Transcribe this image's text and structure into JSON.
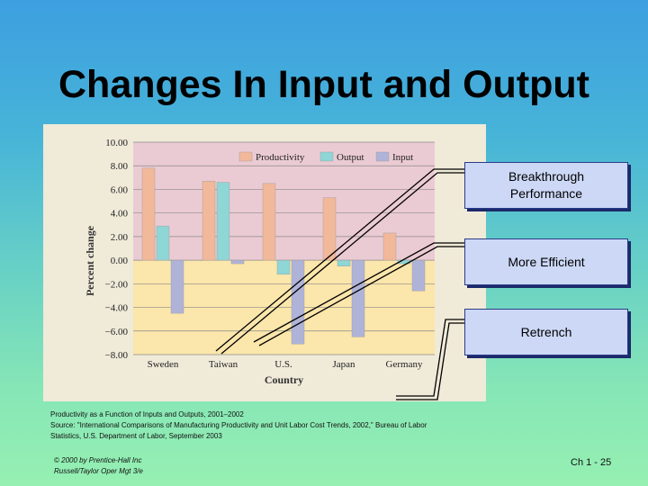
{
  "slide": {
    "title": "Changes In Input and Output",
    "callouts": {
      "breakthrough": "Breakthrough Performance",
      "efficient": "More Efficient",
      "retrench": "Retrench"
    },
    "caption": {
      "line1": "Productivity as a Function of Inputs and Outputs, 2001–2002",
      "line2": "Source: \"International Comparisons of Manufacturing Productivity and Unit Labor Cost Trends, 2002,\" Bureau of Labor",
      "line3": "Statistics, U.S. Department of Labor, September 2003"
    },
    "copyright": {
      "line1": "© 2000 by Prentice-Hall Inc",
      "line2": "Russell/Taylor  Oper Mgt 3/e"
    },
    "page_number": "Ch 1 - 25"
  },
  "chart_data": {
    "type": "bar",
    "categories": [
      "Sweden",
      "Taiwan",
      "U.S.",
      "Japan",
      "Germany"
    ],
    "series": [
      {
        "name": "Productivity",
        "values": [
          7.8,
          6.7,
          6.5,
          5.3,
          2.3
        ],
        "color": "#f2b89a"
      },
      {
        "name": "Output",
        "values": [
          2.9,
          6.6,
          -1.2,
          -0.5,
          -0.3
        ],
        "color": "#8fd6d6"
      },
      {
        "name": "Input",
        "values": [
          -4.5,
          -0.3,
          -7.1,
          -6.5,
          -2.6
        ],
        "color": "#b0b3d8"
      }
    ],
    "xlabel": "Country",
    "ylabel": "Percent change",
    "ylim": [
      -8,
      10
    ],
    "yticks": [
      "10.00",
      "8.00",
      "6.00",
      "4.00",
      "2.00",
      "0.00",
      "−2.00",
      "−4.00",
      "−6.00",
      "−8.00"
    ],
    "ytick_values": [
      10,
      8,
      6,
      4,
      2,
      0,
      -2,
      -4,
      -6,
      -8
    ],
    "positive_region_color": "#ebcbd3",
    "negative_region_color": "#fbe6ab",
    "legend_position": "top-right",
    "grid": true
  }
}
